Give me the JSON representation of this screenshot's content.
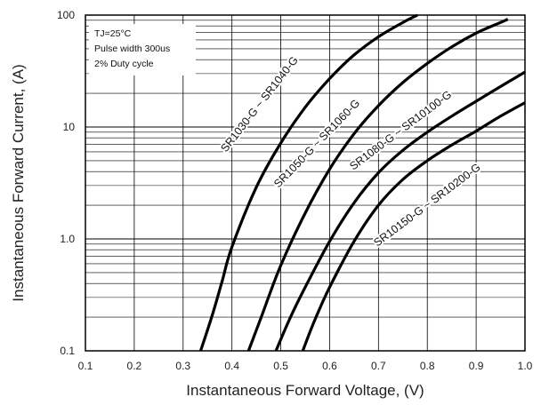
{
  "chart_data": {
    "type": "line",
    "title": "",
    "xlabel": "Instantaneous Forward Voltage, (V)",
    "ylabel": "Instantaneous Forward Current, (A)",
    "xlim": [
      0.1,
      1.0
    ],
    "ylim": [
      0.1,
      100
    ],
    "y_scale": "log",
    "grid": true,
    "x_ticks": [
      "0.1",
      "0.2",
      "0.3",
      "0.4",
      "0.5",
      "0.6",
      "0.7",
      "0.8",
      "0.9",
      "1.0"
    ],
    "y_ticks": [
      "0.1",
      "1.0",
      "10",
      "100"
    ],
    "annotations": [
      "TJ=25°C",
      "Pulse width 300us",
      "2% Duty cycle"
    ],
    "series": [
      {
        "name": "SR1030-G ~ SR1040-G",
        "x": [
          0.336,
          0.36,
          0.38,
          0.4,
          0.45,
          0.5,
          0.55,
          0.6,
          0.65,
          0.7,
          0.75,
          0.78
        ],
        "y": [
          0.1,
          0.21,
          0.42,
          0.85,
          2.9,
          7.2,
          15,
          27,
          44,
          64,
          86,
          100
        ]
      },
      {
        "name": "SR1050-G ~ SR1060-G",
        "x": [
          0.434,
          0.46,
          0.5,
          0.55,
          0.6,
          0.65,
          0.7,
          0.75,
          0.8,
          0.85,
          0.9,
          0.95,
          0.965
        ],
        "y": [
          0.1,
          0.2,
          0.58,
          1.7,
          4.2,
          8.7,
          15.5,
          25,
          37,
          52,
          69,
          86,
          92
        ]
      },
      {
        "name": "SR1080-G ~ SR10100-G",
        "x": [
          0.49,
          0.52,
          0.55,
          0.6,
          0.65,
          0.7,
          0.75,
          0.8,
          0.85,
          0.9,
          0.95,
          1.0
        ],
        "y": [
          0.1,
          0.2,
          0.37,
          0.95,
          2.1,
          3.9,
          6.2,
          9.0,
          12.5,
          17,
          23,
          31
        ]
      },
      {
        "name": "SR10150-G ~ SR10200-G",
        "x": [
          0.545,
          0.57,
          0.6,
          0.65,
          0.7,
          0.75,
          0.8,
          0.85,
          0.9,
          0.95,
          1.0
        ],
        "y": [
          0.1,
          0.19,
          0.37,
          0.95,
          2.0,
          3.4,
          5.0,
          6.9,
          9.2,
          12.5,
          16.5
        ]
      }
    ]
  }
}
